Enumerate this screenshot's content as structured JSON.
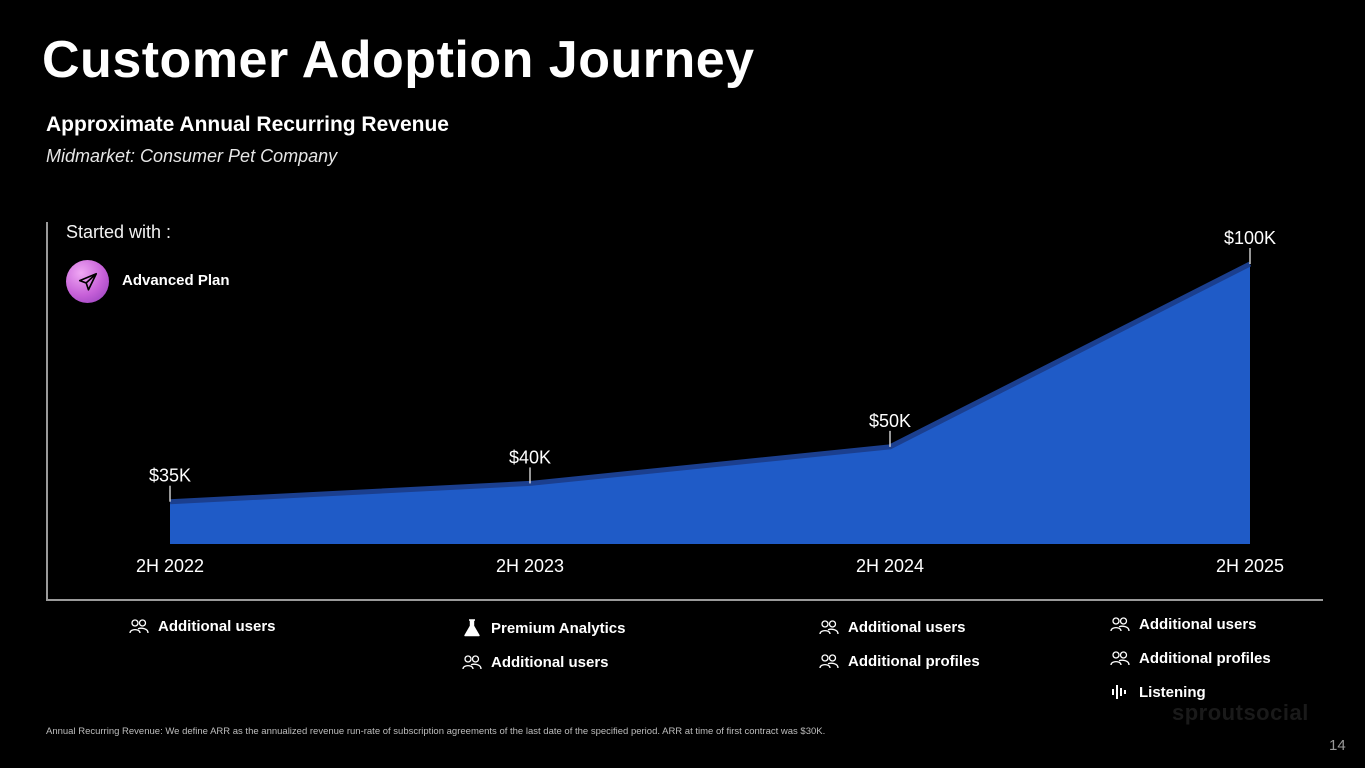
{
  "title": "Customer Adoption Journey",
  "subtitle": "Approximate Annual Recurring Revenue",
  "segment": "Midmarket: Consumer Pet Company",
  "started": {
    "label": "Started with :",
    "plan": "Advanced Plan",
    "icon": "paper-plane-icon"
  },
  "chart_data": {
    "type": "area",
    "title": "Approximate Annual Recurring Revenue",
    "categories": [
      "2H 2022",
      "2H 2023",
      "2H 2024",
      "2H 2025"
    ],
    "values": [
      35,
      40,
      50,
      100
    ],
    "labels": [
      "$35K",
      "$40K",
      "$50K",
      "$100K"
    ],
    "unit": "$K",
    "ylim": [
      30,
      100
    ],
    "grid": false,
    "fill_color": "#1f5bc7",
    "line_color": "#1b3f8f"
  },
  "features": [
    {
      "items": [
        {
          "icon": "users-icon",
          "label": "Additional users"
        }
      ]
    },
    {
      "items": [
        {
          "icon": "flask-icon",
          "label": "Premium Analytics"
        },
        {
          "icon": "users-icon",
          "label": "Additional users"
        }
      ]
    },
    {
      "items": [
        {
          "icon": "users-icon",
          "label": "Additional users"
        },
        {
          "icon": "users-icon",
          "label": "Additional profiles"
        }
      ]
    },
    {
      "items": [
        {
          "icon": "users-icon",
          "label": "Additional users"
        },
        {
          "icon": "users-icon",
          "label": "Additional profiles"
        },
        {
          "icon": "soundwave-icon",
          "label": "Listening"
        }
      ]
    }
  ],
  "footnote": "Annual Recurring Revenue: We define ARR as the annualized revenue run-rate of subscription agreements of the last date of the specified period. ARR at time of first contract was $30K.",
  "watermark": "sproutsocial",
  "page_number": "14"
}
